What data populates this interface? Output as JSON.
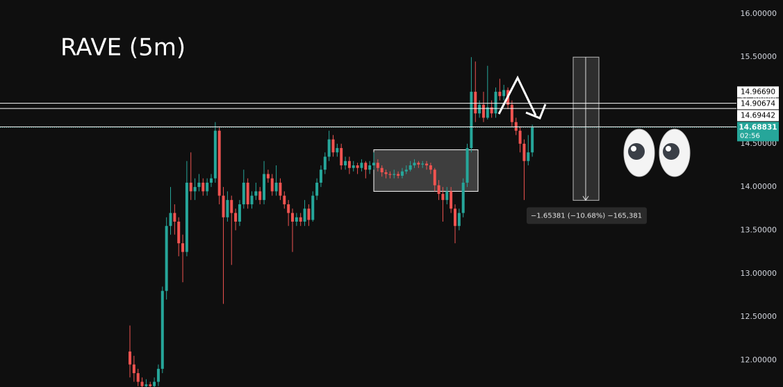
{
  "chart_data": {
    "type": "candlestick",
    "title": "RAVE (5m)",
    "up_color": "#26a69a",
    "down_color": "#ef5350",
    "ylim": [
      11.69,
      16.16
    ],
    "yticks": [
      {
        "value": 12,
        "label": "12.00000"
      },
      {
        "value": 12.5,
        "label": "12.50000"
      },
      {
        "value": 13,
        "label": "13.00000"
      },
      {
        "value": 13.5,
        "label": "13.50000"
      },
      {
        "value": 14,
        "label": "14.00000"
      },
      {
        "value": 14.5,
        "label": "14.50000"
      },
      {
        "value": 15,
        "label": "15.00000"
      },
      {
        "value": 15.5,
        "label": "15.50000"
      },
      {
        "value": 16,
        "label": "16.00000"
      }
    ],
    "price_lines": [
      {
        "value": 14.9669,
        "label": "14.96690",
        "color": "#ffffff"
      },
      {
        "value": 14.90674,
        "color": "#ffffff"
      },
      {
        "value": 14.69442,
        "color": "#ffffff"
      },
      {
        "value": 14.68831,
        "color": "#26a69a",
        "countdown": "02:56"
      }
    ],
    "measure": {
      "start": 15.5,
      "end": 13.84619,
      "label": "−1.65381 (−10.68%) −165,381"
    },
    "zone": {
      "top": 14.43,
      "bottom": 13.95
    },
    "ohlc": [
      [
        12.1,
        12.4,
        11.8,
        11.95
      ],
      [
        11.95,
        12.05,
        11.75,
        11.85
      ],
      [
        11.85,
        11.9,
        11.7,
        11.75
      ],
      [
        11.75,
        11.8,
        11.65,
        11.7
      ],
      [
        11.7,
        11.78,
        11.65,
        11.72
      ],
      [
        11.72,
        11.75,
        11.65,
        11.7
      ],
      [
        11.7,
        11.8,
        11.65,
        11.75
      ],
      [
        11.75,
        11.95,
        11.7,
        11.9
      ],
      [
        11.9,
        12.85,
        11.85,
        12.8
      ],
      [
        12.8,
        13.65,
        12.7,
        13.55
      ],
      [
        13.55,
        14.0,
        13.45,
        13.7
      ],
      [
        13.7,
        13.8,
        13.45,
        13.6
      ],
      [
        13.6,
        13.65,
        13.2,
        13.35
      ],
      [
        13.35,
        13.45,
        12.9,
        13.25
      ],
      [
        13.25,
        14.3,
        13.2,
        14.05
      ],
      [
        14.05,
        14.4,
        13.85,
        13.95
      ],
      [
        13.95,
        14.1,
        13.85,
        14.0
      ],
      [
        14.0,
        14.15,
        13.95,
        14.05
      ],
      [
        14.05,
        14.1,
        13.9,
        13.95
      ],
      [
        13.95,
        14.1,
        13.9,
        14.05
      ],
      [
        14.05,
        14.15,
        14.0,
        14.1
      ],
      [
        14.1,
        14.75,
        14.05,
        14.65
      ],
      [
        14.65,
        14.7,
        13.8,
        13.9
      ],
      [
        13.9,
        14.0,
        12.65,
        13.65
      ],
      [
        13.65,
        13.95,
        13.6,
        13.85
      ],
      [
        13.85,
        13.9,
        13.1,
        13.7
      ],
      [
        13.7,
        13.75,
        13.5,
        13.6
      ],
      [
        13.6,
        13.85,
        13.55,
        13.8
      ],
      [
        13.8,
        14.2,
        13.75,
        14.05
      ],
      [
        14.05,
        14.1,
        13.75,
        13.8
      ],
      [
        13.8,
        13.95,
        13.75,
        13.9
      ],
      [
        13.9,
        14.05,
        13.85,
        13.95
      ],
      [
        13.95,
        14.0,
        13.8,
        13.85
      ],
      [
        13.85,
        14.3,
        13.8,
        14.15
      ],
      [
        14.15,
        14.2,
        14.05,
        14.1
      ],
      [
        14.1,
        14.15,
        13.9,
        13.95
      ],
      [
        13.95,
        14.25,
        13.9,
        14.05
      ],
      [
        14.05,
        14.1,
        13.85,
        13.9
      ],
      [
        13.9,
        13.95,
        13.75,
        13.8
      ],
      [
        13.8,
        13.85,
        13.55,
        13.7
      ],
      [
        13.7,
        13.75,
        13.25,
        13.6
      ],
      [
        13.6,
        13.7,
        13.55,
        13.65
      ],
      [
        13.65,
        13.7,
        13.55,
        13.6
      ],
      [
        13.6,
        13.85,
        13.55,
        13.75
      ],
      [
        13.75,
        13.8,
        13.55,
        13.62
      ],
      [
        13.62,
        13.95,
        13.6,
        13.9
      ],
      [
        13.9,
        14.1,
        13.85,
        14.05
      ],
      [
        14.05,
        14.25,
        14.0,
        14.2
      ],
      [
        14.2,
        14.4,
        14.15,
        14.35
      ],
      [
        14.35,
        14.65,
        14.3,
        14.55
      ],
      [
        14.55,
        14.6,
        14.35,
        14.4
      ],
      [
        14.4,
        14.5,
        14.35,
        14.45
      ],
      [
        14.45,
        14.5,
        14.2,
        14.25
      ],
      [
        14.25,
        14.35,
        14.2,
        14.3
      ],
      [
        14.3,
        14.35,
        14.15,
        14.22
      ],
      [
        14.22,
        14.3,
        14.18,
        14.25
      ],
      [
        14.25,
        14.28,
        14.15,
        14.22
      ],
      [
        14.22,
        14.32,
        14.18,
        14.28
      ],
      [
        14.28,
        14.3,
        14.1,
        14.2
      ],
      [
        14.2,
        14.3,
        14.15,
        14.25
      ],
      [
        14.25,
        14.4,
        14.2,
        14.28
      ],
      [
        14.28,
        14.32,
        14.18,
        14.22
      ],
      [
        14.22,
        14.25,
        14.12,
        14.17
      ],
      [
        14.17,
        14.2,
        14.1,
        14.15
      ],
      [
        14.15,
        14.18,
        14.1,
        14.14
      ],
      [
        14.14,
        14.2,
        14.1,
        14.15
      ],
      [
        14.15,
        14.18,
        14.1,
        14.13
      ],
      [
        14.13,
        14.22,
        14.1,
        14.18
      ],
      [
        14.18,
        14.25,
        14.15,
        14.2
      ],
      [
        14.2,
        14.3,
        14.18,
        14.25
      ],
      [
        14.25,
        14.32,
        14.22,
        14.28
      ],
      [
        14.28,
        14.3,
        14.22,
        14.26
      ],
      [
        14.26,
        14.3,
        14.22,
        14.27
      ],
      [
        14.27,
        14.3,
        14.2,
        14.25
      ],
      [
        14.25,
        14.28,
        14.15,
        14.2
      ],
      [
        14.2,
        14.22,
        13.95,
        14.02
      ],
      [
        14.02,
        14.08,
        13.85,
        13.92
      ],
      [
        13.92,
        14.0,
        13.6,
        13.85
      ],
      [
        13.85,
        14.0,
        13.8,
        13.95
      ],
      [
        13.95,
        14.0,
        13.7,
        13.75
      ],
      [
        13.75,
        13.8,
        13.35,
        13.55
      ],
      [
        13.55,
        13.75,
        13.5,
        13.7
      ],
      [
        13.7,
        14.1,
        13.65,
        14.05
      ],
      [
        14.05,
        14.5,
        14.0,
        14.45
      ],
      [
        14.45,
        15.5,
        14.4,
        15.1
      ],
      [
        15.1,
        15.45,
        14.75,
        14.85
      ],
      [
        14.85,
        15.0,
        14.8,
        14.95
      ],
      [
        14.95,
        15.1,
        14.75,
        14.8
      ],
      [
        14.8,
        15.4,
        14.78,
        14.92
      ],
      [
        14.92,
        15.0,
        14.8,
        14.85
      ],
      [
        14.85,
        15.15,
        14.8,
        15.1
      ],
      [
        15.1,
        15.25,
        15.0,
        15.05
      ],
      [
        15.05,
        15.18,
        15.0,
        15.12
      ],
      [
        15.12,
        15.15,
        14.9,
        14.95
      ],
      [
        14.95,
        15.0,
        14.7,
        14.75
      ],
      [
        14.75,
        14.8,
        14.6,
        14.65
      ],
      [
        14.65,
        14.7,
        14.4,
        14.5
      ],
      [
        14.5,
        14.55,
        13.85,
        14.3
      ],
      [
        14.3,
        14.6,
        14.25,
        14.4
      ],
      [
        14.4,
        14.72,
        14.35,
        14.68831
      ]
    ]
  }
}
